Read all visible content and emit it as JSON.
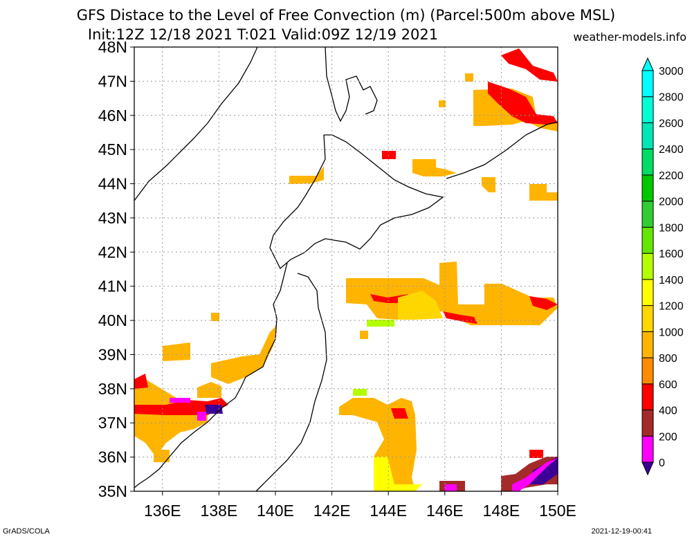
{
  "title_line1": "GFS Distace to the Level of Free Convection (m) (Parcel:500m above MSL)",
  "title_line2": "Init:12Z 12/18 2021 T:021 Valid:09Z 12/19 2021",
  "site": "weather-models.info",
  "footer_left": "GrADS/COLA",
  "footer_right": "2021-12-19-00:41",
  "map": {
    "lon_range": [
      135,
      150
    ],
    "lat_range": [
      35,
      48
    ],
    "lat_labels": [
      "35N",
      "36N",
      "37N",
      "38N",
      "39N",
      "40N",
      "41N",
      "42N",
      "43N",
      "44N",
      "45N",
      "46N",
      "47N",
      "48N"
    ],
    "lon_labels": [
      "136E",
      "138E",
      "140E",
      "142E",
      "144E",
      "146E",
      "148E",
      "150E"
    ],
    "grid": true,
    "coastline_color": "#000000"
  },
  "colorbar": {
    "levels": [
      "0",
      "200",
      "400",
      "600",
      "800",
      "1000",
      "1200",
      "1400",
      "1600",
      "1800",
      "2000",
      "2200",
      "2400",
      "2600",
      "2800",
      "3000"
    ],
    "colors": [
      "#3c0096",
      "#ff00ff",
      "#a52a2a",
      "#ff0000",
      "#ff8c00",
      "#ffb400",
      "#ffd700",
      "#ffff00",
      "#b4ff00",
      "#64e600",
      "#32cd32",
      "#00c800",
      "#00dc64",
      "#00e6b4",
      "#00ffd2",
      "#00ffff"
    ]
  }
}
